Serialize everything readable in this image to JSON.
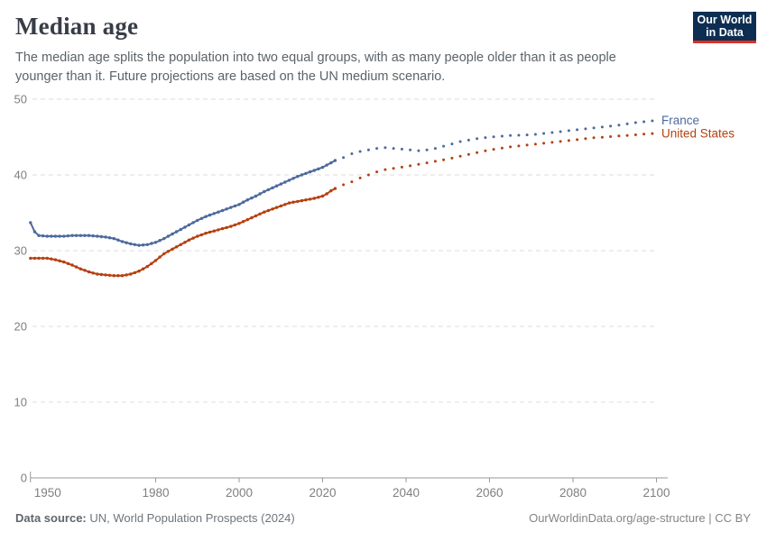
{
  "header": {
    "title": "Median age",
    "subtitle_line1": "The median age splits the population into two equal groups, with as many people older than it as people",
    "subtitle_line2": "younger than it. Future projections are based on the UN medium scenario.",
    "logo": {
      "line1": "Our World",
      "line2": "in Data",
      "bg_color": "#0d2e52",
      "accent_color": "#dc3224"
    }
  },
  "chart_data": {
    "type": "line",
    "title": "Median age",
    "xlabel": "",
    "ylabel": "",
    "xlim": [
      1950,
      2100
    ],
    "ylim": [
      0,
      50
    ],
    "x_ticks": [
      1950,
      1980,
      2000,
      2020,
      2040,
      2060,
      2080,
      2100
    ],
    "y_ticks": [
      0,
      10,
      20,
      30,
      40,
      50
    ],
    "grid": "horizontal-dashed",
    "legend_position": "right-of-line-end",
    "projection_start_year": 2023,
    "projection_note": "solid = estimates, dotted = UN medium-scenario projection",
    "series": [
      {
        "name": "France",
        "color": "#4c6a9c",
        "points": [
          [
            1950,
            33.7
          ],
          [
            1951,
            32.5
          ],
          [
            1952,
            32.0
          ],
          [
            1954,
            31.9
          ],
          [
            1956,
            31.9
          ],
          [
            1958,
            31.9
          ],
          [
            1960,
            32.0
          ],
          [
            1962,
            32.0
          ],
          [
            1964,
            32.0
          ],
          [
            1966,
            31.9
          ],
          [
            1968,
            31.8
          ],
          [
            1970,
            31.6
          ],
          [
            1972,
            31.2
          ],
          [
            1974,
            30.9
          ],
          [
            1976,
            30.7
          ],
          [
            1978,
            30.8
          ],
          [
            1980,
            31.1
          ],
          [
            1982,
            31.6
          ],
          [
            1984,
            32.2
          ],
          [
            1986,
            32.8
          ],
          [
            1988,
            33.4
          ],
          [
            1990,
            34.0
          ],
          [
            1992,
            34.5
          ],
          [
            1994,
            34.9
          ],
          [
            1996,
            35.3
          ],
          [
            1998,
            35.7
          ],
          [
            2000,
            36.1
          ],
          [
            2002,
            36.7
          ],
          [
            2004,
            37.2
          ],
          [
            2006,
            37.8
          ],
          [
            2008,
            38.3
          ],
          [
            2010,
            38.8
          ],
          [
            2012,
            39.3
          ],
          [
            2014,
            39.8
          ],
          [
            2016,
            40.2
          ],
          [
            2018,
            40.6
          ],
          [
            2020,
            41.0
          ],
          [
            2022,
            41.6
          ],
          [
            2023,
            41.9
          ],
          [
            2025,
            42.3
          ],
          [
            2027,
            42.8
          ],
          [
            2029,
            43.1
          ],
          [
            2031,
            43.3
          ],
          [
            2033,
            43.5
          ],
          [
            2035,
            43.6
          ],
          [
            2037,
            43.5
          ],
          [
            2039,
            43.4
          ],
          [
            2041,
            43.3
          ],
          [
            2043,
            43.2
          ],
          [
            2045,
            43.3
          ],
          [
            2047,
            43.5
          ],
          [
            2049,
            43.8
          ],
          [
            2051,
            44.1
          ],
          [
            2053,
            44.4
          ],
          [
            2055,
            44.6
          ],
          [
            2057,
            44.8
          ],
          [
            2060,
            45.0
          ],
          [
            2065,
            45.2
          ],
          [
            2070,
            45.3
          ],
          [
            2075,
            45.6
          ],
          [
            2080,
            45.9
          ],
          [
            2085,
            46.2
          ],
          [
            2090,
            46.5
          ],
          [
            2095,
            46.9
          ],
          [
            2100,
            47.2
          ]
        ]
      },
      {
        "name": "United States",
        "color": "#b5400f",
        "points": [
          [
            1950,
            29.0
          ],
          [
            1952,
            29.0
          ],
          [
            1954,
            29.0
          ],
          [
            1956,
            28.8
          ],
          [
            1958,
            28.5
          ],
          [
            1960,
            28.1
          ],
          [
            1962,
            27.6
          ],
          [
            1964,
            27.2
          ],
          [
            1966,
            26.9
          ],
          [
            1968,
            26.8
          ],
          [
            1970,
            26.7
          ],
          [
            1972,
            26.7
          ],
          [
            1974,
            26.9
          ],
          [
            1976,
            27.3
          ],
          [
            1978,
            27.9
          ],
          [
            1980,
            28.7
          ],
          [
            1982,
            29.6
          ],
          [
            1984,
            30.2
          ],
          [
            1986,
            30.8
          ],
          [
            1988,
            31.4
          ],
          [
            1990,
            31.9
          ],
          [
            1992,
            32.3
          ],
          [
            1994,
            32.6
          ],
          [
            1996,
            32.9
          ],
          [
            1998,
            33.2
          ],
          [
            2000,
            33.6
          ],
          [
            2002,
            34.1
          ],
          [
            2004,
            34.6
          ],
          [
            2006,
            35.1
          ],
          [
            2008,
            35.5
          ],
          [
            2010,
            35.9
          ],
          [
            2012,
            36.3
          ],
          [
            2014,
            36.5
          ],
          [
            2016,
            36.7
          ],
          [
            2018,
            36.9
          ],
          [
            2020,
            37.2
          ],
          [
            2021,
            37.5
          ],
          [
            2022,
            37.9
          ],
          [
            2023,
            38.2
          ],
          [
            2025,
            38.7
          ],
          [
            2027,
            39.1
          ],
          [
            2029,
            39.6
          ],
          [
            2031,
            40.0
          ],
          [
            2033,
            40.4
          ],
          [
            2035,
            40.7
          ],
          [
            2040,
            41.1
          ],
          [
            2045,
            41.6
          ],
          [
            2050,
            42.1
          ],
          [
            2055,
            42.7
          ],
          [
            2060,
            43.3
          ],
          [
            2065,
            43.7
          ],
          [
            2070,
            44.0
          ],
          [
            2075,
            44.3
          ],
          [
            2080,
            44.6
          ],
          [
            2085,
            44.9
          ],
          [
            2090,
            45.1
          ],
          [
            2095,
            45.3
          ],
          [
            2100,
            45.5
          ]
        ]
      }
    ]
  },
  "footer": {
    "source_label": "Data source:",
    "source_text": " UN, World Population Prospects (2024)",
    "credit": "OurWorldinData.org/age-structure | CC BY"
  },
  "colors": {
    "gridline": "#dddddd",
    "axis": "#999999",
    "tick_label": "#7f7f7f"
  }
}
